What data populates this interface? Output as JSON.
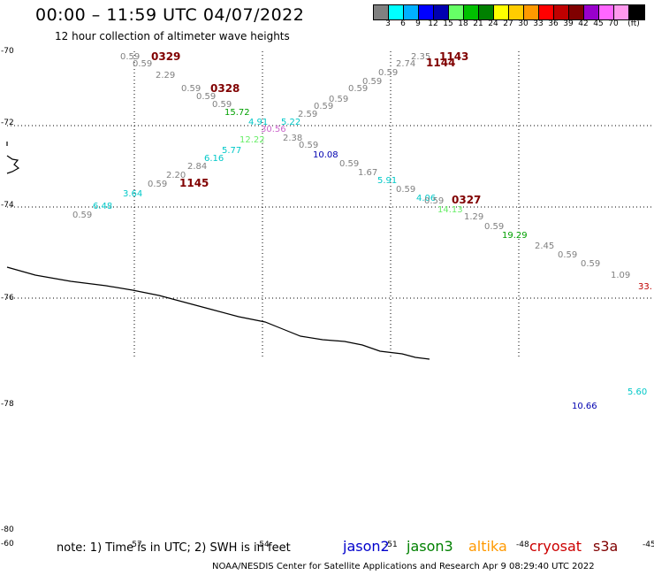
{
  "header": {
    "title": "00:00 – 11:59 UTC 04/07/2022",
    "subtitle": "12 hour collection of altimeter wave heights"
  },
  "colorbar": {
    "colors": [
      "#808080",
      "#00ffff",
      "#00b0ff",
      "#0000ff",
      "#0000b0",
      "#66ff66",
      "#00c000",
      "#008000",
      "#ffff00",
      "#ffcc00",
      "#ff9900",
      "#ff0000",
      "#c00000",
      "#800000",
      "#9900cc",
      "#ff66ff",
      "#ff99ee",
      "#000000"
    ],
    "labels": [
      "3",
      "6",
      "9",
      "12",
      "15",
      "18",
      "21",
      "24",
      "27",
      "30",
      "33",
      "36",
      "39",
      "42",
      "45",
      "70",
      "(ft)"
    ]
  },
  "axes": {
    "lat_labels": [
      "-70",
      "-72",
      "-74",
      "-76",
      "-78",
      "-80"
    ],
    "lon_labels": [
      "-60",
      "-57",
      "-54",
      "-51",
      "-48",
      "-45"
    ]
  },
  "passes": [
    {
      "label": "0329",
      "color": "#800000"
    },
    {
      "label": "0328",
      "color": "#800000"
    },
    {
      "label": "1145",
      "color": "#800000"
    },
    {
      "label": "1143",
      "color": "#800000"
    },
    {
      "label": "1144",
      "color": "#800000"
    },
    {
      "label": "0327",
      "color": "#800000"
    }
  ],
  "wave_heights": [
    {
      "v": "0.59",
      "c": "#808080"
    },
    {
      "v": "0.59",
      "c": "#808080"
    },
    {
      "v": "2.29",
      "c": "#808080"
    },
    {
      "v": "0.59",
      "c": "#808080"
    },
    {
      "v": "0.59",
      "c": "#808080"
    },
    {
      "v": "0.59",
      "c": "#808080"
    },
    {
      "v": "15.72",
      "c": "#00a000"
    },
    {
      "v": "4.91",
      "c": "#00c8c8"
    },
    {
      "v": "30.56",
      "c": "#cc66cc"
    },
    {
      "v": "5.22",
      "c": "#00c8c8"
    },
    {
      "v": "2.59",
      "c": "#808080"
    },
    {
      "v": "0.59",
      "c": "#808080"
    },
    {
      "v": "0.59",
      "c": "#808080"
    },
    {
      "v": "0.59",
      "c": "#808080"
    },
    {
      "v": "0.59",
      "c": "#808080"
    },
    {
      "v": "0.59",
      "c": "#808080"
    },
    {
      "v": "2.74",
      "c": "#808080"
    },
    {
      "v": "2.35",
      "c": "#808080"
    },
    {
      "v": "12.22",
      "c": "#66ee66"
    },
    {
      "v": "2.38",
      "c": "#808080"
    },
    {
      "v": "0.59",
      "c": "#808080"
    },
    {
      "v": "5.77",
      "c": "#00c8c8"
    },
    {
      "v": "10.08",
      "c": "#0000b0"
    },
    {
      "v": "6.16",
      "c": "#00c8c8"
    },
    {
      "v": "2.84",
      "c": "#808080"
    },
    {
      "v": "0.59",
      "c": "#808080"
    },
    {
      "v": "2.20",
      "c": "#808080"
    },
    {
      "v": "1.67",
      "c": "#808080"
    },
    {
      "v": "0.59",
      "c": "#808080"
    },
    {
      "v": "5.91",
      "c": "#00c8c8"
    },
    {
      "v": "3.64",
      "c": "#00c8c8"
    },
    {
      "v": "0.59",
      "c": "#808080"
    },
    {
      "v": "4.06",
      "c": "#00c8c8"
    },
    {
      "v": "0.59",
      "c": "#808080"
    },
    {
      "v": "14.13",
      "c": "#66ee66"
    },
    {
      "v": "6.48",
      "c": "#00c8c8"
    },
    {
      "v": "0.59",
      "c": "#808080"
    },
    {
      "v": "1.29",
      "c": "#808080"
    },
    {
      "v": "0.59",
      "c": "#808080"
    },
    {
      "v": "19.29",
      "c": "#00a000"
    },
    {
      "v": "2.45",
      "c": "#808080"
    },
    {
      "v": "0.59",
      "c": "#808080"
    },
    {
      "v": "0.59",
      "c": "#808080"
    },
    {
      "v": "1.09",
      "c": "#808080"
    },
    {
      "v": "33.",
      "c": "#c00000"
    },
    {
      "v": "5.60",
      "c": "#00c8c8"
    },
    {
      "v": "10.66",
      "c": "#0000b0"
    }
  ],
  "footer": {
    "note": "note: 1) Time is in UTC; 2) SWH is in feet",
    "satellites": [
      {
        "name": "jason2",
        "color": "#0000cc"
      },
      {
        "name": "jason3",
        "color": "#008000"
      },
      {
        "name": "altika",
        "color": "#ff9900"
      },
      {
        "name": "cryosat",
        "color": "#cc0000"
      },
      {
        "name": "s3a",
        "color": "#800000"
      }
    ],
    "credit": "NOAA/NESDIS Center for Satellite Applications and Research   Apr  9 08:29:40 UTC 2022"
  }
}
